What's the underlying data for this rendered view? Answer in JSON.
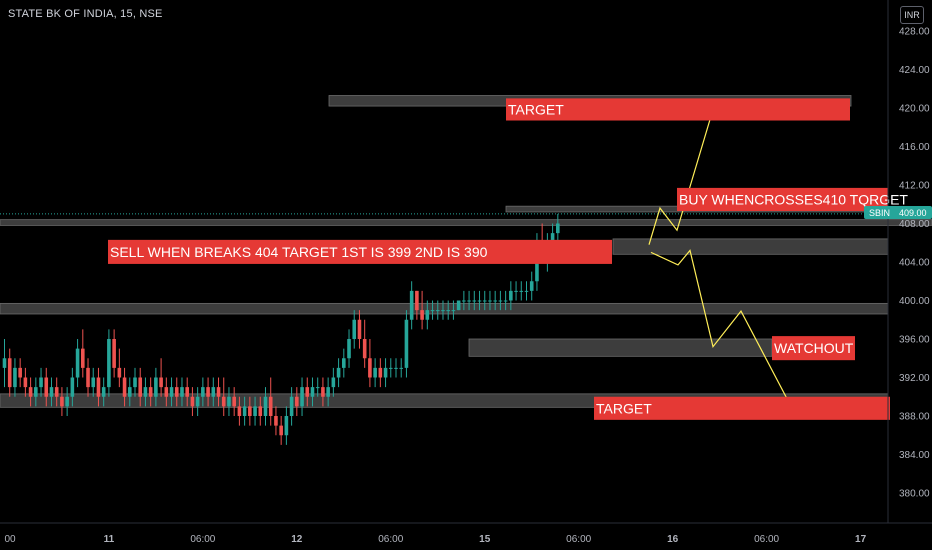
{
  "header": {
    "title": "STATE BK OF INDIA, 15, NSE",
    "currency": "INR"
  },
  "price_tag": {
    "symbol": "SBIN",
    "price": "409.00"
  },
  "colors": {
    "up": "#26a69a",
    "down": "#ef5350",
    "zone": "#3d3d3d",
    "label_bg": "#e53935",
    "projection": "#ffee58",
    "price_line": "#26a69a"
  },
  "chart_data": {
    "type": "candlestick",
    "ylim": [
      377,
      430
    ],
    "yticks": [
      "428.00",
      "424.00",
      "420.00",
      "416.00",
      "412.00",
      "408.00",
      "404.00",
      "400.00",
      "396.00",
      "392.00",
      "388.00",
      "384.00",
      "380.00"
    ],
    "xticks": [
      {
        "label": "00",
        "bar": 0
      },
      {
        "label": "11",
        "bar": 20
      },
      {
        "label": "06:00",
        "bar": 38
      },
      {
        "label": "12",
        "bar": 56
      },
      {
        "label": "06:00",
        "bar": 74
      },
      {
        "label": "15",
        "bar": 92
      },
      {
        "label": "06:00",
        "bar": 110
      },
      {
        "label": "16",
        "bar": 128
      },
      {
        "label": "06:00",
        "bar": 146
      },
      {
        "label": "17",
        "bar": 164
      }
    ],
    "candles": [
      [
        393,
        396,
        391,
        394
      ],
      [
        394,
        395,
        390,
        391
      ],
      [
        391,
        394,
        390,
        393
      ],
      [
        393,
        394,
        391,
        392
      ],
      [
        392,
        393,
        390,
        391
      ],
      [
        391,
        392,
        389,
        390
      ],
      [
        390,
        392,
        389,
        391
      ],
      [
        391,
        393,
        390,
        392
      ],
      [
        392,
        393,
        389,
        390
      ],
      [
        390,
        392,
        389,
        391
      ],
      [
        391,
        392,
        389,
        390
      ],
      [
        390,
        391,
        388,
        389
      ],
      [
        389,
        391,
        388,
        390
      ],
      [
        390,
        393,
        389,
        392
      ],
      [
        392,
        396,
        391,
        395
      ],
      [
        395,
        397,
        392,
        393
      ],
      [
        393,
        394,
        390,
        391
      ],
      [
        391,
        393,
        390,
        392
      ],
      [
        392,
        393,
        389,
        390
      ],
      [
        390,
        392,
        389,
        391
      ],
      [
        391,
        397,
        390,
        396
      ],
      [
        396,
        397,
        392,
        393
      ],
      [
        393,
        395,
        391,
        392
      ],
      [
        392,
        393,
        389,
        390
      ],
      [
        390,
        392,
        389,
        391
      ],
      [
        391,
        393,
        390,
        392
      ],
      [
        392,
        393,
        389,
        390
      ],
      [
        390,
        392,
        389,
        391
      ],
      [
        391,
        392,
        389,
        390
      ],
      [
        390,
        393,
        389,
        392
      ],
      [
        392,
        394,
        390,
        391
      ],
      [
        391,
        392,
        389,
        390
      ],
      [
        390,
        392,
        389,
        391
      ],
      [
        391,
        392,
        389,
        390
      ],
      [
        390,
        392,
        389,
        391
      ],
      [
        391,
        392,
        389,
        390
      ],
      [
        390,
        391,
        388,
        389
      ],
      [
        389,
        391,
        388,
        390
      ],
      [
        390,
        392,
        389,
        391
      ],
      [
        391,
        392,
        389,
        390
      ],
      [
        390,
        392,
        389,
        391
      ],
      [
        391,
        392,
        389,
        390
      ],
      [
        390,
        392,
        388,
        389
      ],
      [
        389,
        391,
        388,
        390
      ],
      [
        390,
        391,
        388,
        389
      ],
      [
        389,
        390,
        387,
        388
      ],
      [
        388,
        390,
        387,
        389
      ],
      [
        389,
        390,
        387,
        388
      ],
      [
        388,
        390,
        387,
        389
      ],
      [
        389,
        390,
        387,
        388
      ],
      [
        388,
        391,
        387,
        390
      ],
      [
        390,
        392,
        387,
        388
      ],
      [
        388,
        389,
        386,
        387
      ],
      [
        387,
        388,
        385,
        386
      ],
      [
        386,
        389,
        385,
        388
      ],
      [
        388,
        391,
        387,
        390
      ],
      [
        390,
        391,
        388,
        389
      ],
      [
        389,
        392,
        388,
        391
      ],
      [
        391,
        392,
        389,
        390
      ],
      [
        390,
        392,
        389,
        391
      ],
      [
        391,
        392,
        390,
        391
      ],
      [
        391,
        392,
        389,
        390
      ],
      [
        390,
        392,
        389,
        391
      ],
      [
        391,
        393,
        390,
        392
      ],
      [
        392,
        394,
        391,
        393
      ],
      [
        393,
        395,
        392,
        394
      ],
      [
        394,
        397,
        393,
        396
      ],
      [
        396,
        399,
        395,
        398
      ],
      [
        398,
        399,
        395,
        396
      ],
      [
        396,
        398,
        393,
        394
      ],
      [
        394,
        396,
        391,
        392
      ],
      [
        392,
        394,
        391,
        393
      ],
      [
        393,
        394,
        391,
        392
      ],
      [
        392,
        394,
        391,
        393
      ],
      [
        393,
        394,
        392,
        393
      ],
      [
        393,
        394,
        392,
        393
      ],
      [
        393,
        394,
        392,
        393
      ],
      [
        393,
        399,
        392,
        398
      ],
      [
        398,
        402,
        397,
        401
      ],
      [
        401,
        401,
        398,
        399
      ],
      [
        399,
        401,
        397,
        398
      ],
      [
        398,
        400,
        397,
        399
      ],
      [
        399,
        400,
        398,
        399
      ],
      [
        399,
        400,
        398,
        399
      ],
      [
        399,
        400,
        398,
        399
      ],
      [
        399,
        400,
        398,
        399
      ],
      [
        399,
        400,
        398,
        399
      ],
      [
        399,
        400,
        399,
        400
      ],
      [
        400,
        401,
        399,
        400
      ],
      [
        400,
        401,
        399,
        400
      ],
      [
        400,
        401,
        399,
        400
      ],
      [
        400,
        401,
        399,
        400
      ],
      [
        400,
        401,
        399,
        400
      ],
      [
        400,
        401,
        399,
        400
      ],
      [
        400,
        401,
        399,
        400
      ],
      [
        400,
        401,
        399,
        400
      ],
      [
        400,
        401,
        399,
        400
      ],
      [
        400,
        402,
        399,
        401
      ],
      [
        401,
        402,
        400,
        401
      ],
      [
        401,
        402,
        400,
        401
      ],
      [
        401,
        402,
        400,
        401
      ],
      [
        401,
        403,
        400,
        402
      ],
      [
        402,
        407,
        401,
        406
      ],
      [
        406,
        408,
        404,
        405
      ],
      [
        405,
        407,
        403,
        406
      ],
      [
        406,
        408,
        404,
        407
      ],
      [
        407,
        409,
        405,
        408
      ]
    ],
    "zones": [
      {
        "name": "zone-top-420",
        "x0": 329,
        "x1": 851,
        "y0": 421.3,
        "y1": 420.2
      },
      {
        "name": "zone-buy-409",
        "x0": 506,
        "x1": 868,
        "y0": 409.8,
        "y1": 409.2
      },
      {
        "name": "zone-408",
        "x0": 0,
        "x1": 932,
        "y0": 408.4,
        "y1": 407.8
      },
      {
        "name": "zone-405",
        "x0": 613,
        "x1": 888,
        "y0": 406.4,
        "y1": 404.8
      },
      {
        "name": "zone-399",
        "x0": 0,
        "x1": 888,
        "y0": 399.7,
        "y1": 398.6
      },
      {
        "name": "zone-395",
        "x0": 469,
        "x1": 772,
        "y0": 396.0,
        "y1": 394.2
      },
      {
        "name": "zone-389",
        "x0": 0,
        "x1": 888,
        "y0": 390.3,
        "y1": 388.9
      }
    ],
    "annotations": [
      {
        "name": "target-top-label",
        "text": "TARGET",
        "x0": 506,
        "x1": 850,
        "y0": 421.0,
        "y1": 418.7
      },
      {
        "name": "buy-label",
        "text": "BUY WHENCROSSES410 TQRGET",
        "x0": 677,
        "x1": 888,
        "y0": 411.7,
        "y1": 409.3
      },
      {
        "name": "sell-label",
        "text": "SELL WHEN BREAKS 404 TARGET 1ST IS 399 2ND IS 390",
        "x0": 108,
        "x1": 612,
        "y0": 406.3,
        "y1": 403.8
      },
      {
        "name": "watchout-label",
        "text": "WATCHOUT",
        "x0": 772,
        "x1": 855,
        "y0": 396.3,
        "y1": 393.8
      },
      {
        "name": "target-bottom-label",
        "text": "TARGET",
        "x0": 594,
        "x1": 890,
        "y0": 390.0,
        "y1": 387.6
      }
    ],
    "projection_up": [
      [
        649,
        405.8
      ],
      [
        660,
        409.6
      ],
      [
        677,
        407.3
      ],
      [
        710,
        418.8
      ]
    ],
    "projection_down": [
      [
        651,
        405.0
      ],
      [
        678,
        403.7
      ],
      [
        690,
        405.2
      ],
      [
        713,
        395.2
      ],
      [
        741,
        398.9
      ],
      [
        787,
        389.8
      ]
    ]
  }
}
